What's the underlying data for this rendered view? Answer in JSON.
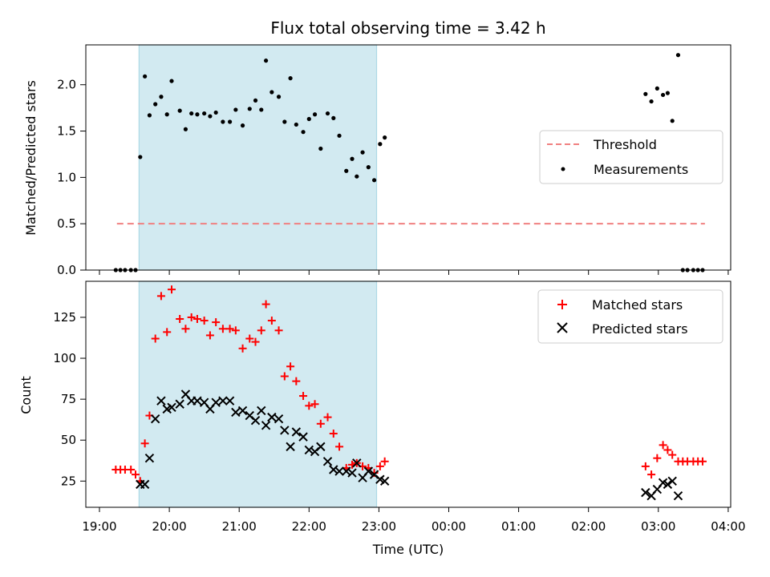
{
  "chart_data": {
    "title": "Flux total observing time = 3.42 h",
    "xlabel": "Time (UTC)",
    "x_tick_labels": [
      "19:00",
      "20:00",
      "21:00",
      "22:00",
      "23:00",
      "00:00",
      "01:00",
      "02:00",
      "03:00",
      "04:00"
    ],
    "colors": {
      "highlight": "#add8e6",
      "threshold": "#f08080",
      "matched": "#ff0000",
      "predicted": "#000000",
      "measurement": "#000000"
    },
    "highlight_span": {
      "start": "19:34",
      "end": "22:58"
    },
    "top": {
      "type": "scatter",
      "ylabel": "Matched/Predicted stars",
      "ylim": [
        0,
        2.43
      ],
      "yticks": [
        0.0,
        0.5,
        1.0,
        1.5,
        2.0
      ],
      "ytick_labels": [
        "0.0",
        "0.5",
        "1.0",
        "1.5",
        "2.0"
      ],
      "legend": {
        "placement": "center-right",
        "threshold_label": "Threshold",
        "measurements_label": "Measurements"
      },
      "threshold": {
        "value": 0.5,
        "from": "19:15",
        "to": "03:40"
      },
      "measurements": [
        [
          "19:14",
          0.0
        ],
        [
          "19:18",
          0.0
        ],
        [
          "19:22",
          0.0
        ],
        [
          "19:27",
          0.0
        ],
        [
          "19:31",
          0.0
        ],
        [
          "19:35",
          1.22
        ],
        [
          "19:39",
          2.09
        ],
        [
          "19:43",
          1.67
        ],
        [
          "19:48",
          1.79
        ],
        [
          "19:53",
          1.87
        ],
        [
          "19:58",
          1.68
        ],
        [
          "20:02",
          2.04
        ],
        [
          "20:09",
          1.72
        ],
        [
          "20:14",
          1.52
        ],
        [
          "20:19",
          1.69
        ],
        [
          "20:24",
          1.68
        ],
        [
          "20:30",
          1.69
        ],
        [
          "20:35",
          1.66
        ],
        [
          "20:40",
          1.7
        ],
        [
          "20:46",
          1.6
        ],
        [
          "20:52",
          1.6
        ],
        [
          "20:57",
          1.73
        ],
        [
          "21:03",
          1.56
        ],
        [
          "21:09",
          1.74
        ],
        [
          "21:14",
          1.83
        ],
        [
          "21:19",
          1.73
        ],
        [
          "21:23",
          2.26
        ],
        [
          "21:28",
          1.92
        ],
        [
          "21:34",
          1.87
        ],
        [
          "21:39",
          1.6
        ],
        [
          "21:44",
          2.07
        ],
        [
          "21:49",
          1.57
        ],
        [
          "21:55",
          1.49
        ],
        [
          "22:00",
          1.63
        ],
        [
          "22:05",
          1.68
        ],
        [
          "22:10",
          1.31
        ],
        [
          "22:16",
          1.69
        ],
        [
          "22:21",
          1.64
        ],
        [
          "22:26",
          1.45
        ],
        [
          "22:32",
          1.07
        ],
        [
          "22:37",
          1.2
        ],
        [
          "22:41",
          1.01
        ],
        [
          "22:46",
          1.27
        ],
        [
          "22:51",
          1.11
        ],
        [
          "22:56",
          0.97
        ],
        [
          "23:01",
          1.36
        ],
        [
          "23:05",
          1.43
        ],
        [
          "02:49",
          1.9
        ],
        [
          "02:54",
          1.82
        ],
        [
          "02:59",
          1.96
        ],
        [
          "03:04",
          1.89
        ],
        [
          "03:08",
          1.91
        ],
        [
          "03:12",
          1.61
        ],
        [
          "03:17",
          2.32
        ],
        [
          "03:21",
          0.0
        ],
        [
          "03:25",
          0.0
        ],
        [
          "03:30",
          0.0
        ],
        [
          "03:34",
          0.0
        ],
        [
          "03:38",
          0.0
        ]
      ]
    },
    "bottom": {
      "type": "scatter",
      "ylabel": "Count",
      "ylim": [
        9,
        147
      ],
      "yticks": [
        25,
        50,
        75,
        100,
        125
      ],
      "ytick_labels": [
        "25",
        "50",
        "75",
        "100",
        "125"
      ],
      "legend": {
        "placement": "upper-right",
        "matched_label": "Matched stars",
        "predicted_label": "Predicted stars"
      },
      "matched": [
        [
          "19:14",
          32
        ],
        [
          "19:18",
          32
        ],
        [
          "19:22",
          32
        ],
        [
          "19:27",
          32
        ],
        [
          "19:31",
          29
        ],
        [
          "19:35",
          25
        ],
        [
          "19:39",
          48
        ],
        [
          "19:43",
          65
        ],
        [
          "19:48",
          112
        ],
        [
          "19:53",
          138
        ],
        [
          "19:58",
          116
        ],
        [
          "20:02",
          142
        ],
        [
          "20:09",
          124
        ],
        [
          "20:14",
          118
        ],
        [
          "20:19",
          125
        ],
        [
          "20:24",
          124
        ],
        [
          "20:30",
          123
        ],
        [
          "20:35",
          114
        ],
        [
          "20:40",
          122
        ],
        [
          "20:46",
          118
        ],
        [
          "20:52",
          118
        ],
        [
          "20:57",
          117
        ],
        [
          "21:03",
          106
        ],
        [
          "21:09",
          112
        ],
        [
          "21:14",
          110
        ],
        [
          "21:19",
          117
        ],
        [
          "21:23",
          133
        ],
        [
          "21:28",
          123
        ],
        [
          "21:34",
          117
        ],
        [
          "21:39",
          89
        ],
        [
          "21:44",
          95
        ],
        [
          "21:49",
          86
        ],
        [
          "21:55",
          77
        ],
        [
          "22:00",
          71
        ],
        [
          "22:05",
          72
        ],
        [
          "22:10",
          60
        ],
        [
          "22:16",
          64
        ],
        [
          "22:21",
          54
        ],
        [
          "22:26",
          46
        ],
        [
          "22:32",
          33
        ],
        [
          "22:37",
          35
        ],
        [
          "22:41",
          36
        ],
        [
          "22:46",
          34
        ],
        [
          "22:51",
          33
        ],
        [
          "22:56",
          30
        ],
        [
          "23:01",
          34
        ],
        [
          "23:05",
          37
        ],
        [
          "02:49",
          34
        ],
        [
          "02:54",
          29
        ],
        [
          "02:59",
          39
        ],
        [
          "03:04",
          47
        ],
        [
          "03:08",
          44
        ],
        [
          "03:12",
          41
        ],
        [
          "03:17",
          37
        ],
        [
          "03:21",
          37
        ],
        [
          "03:25",
          37
        ],
        [
          "03:30",
          37
        ],
        [
          "03:34",
          37
        ],
        [
          "03:38",
          37
        ]
      ],
      "predicted": [
        [
          "19:35",
          23
        ],
        [
          "19:39",
          23
        ],
        [
          "19:43",
          39
        ],
        [
          "19:48",
          63
        ],
        [
          "19:53",
          74
        ],
        [
          "19:58",
          69
        ],
        [
          "20:02",
          70
        ],
        [
          "20:09",
          72
        ],
        [
          "20:14",
          78
        ],
        [
          "20:19",
          74
        ],
        [
          "20:24",
          74
        ],
        [
          "20:30",
          73
        ],
        [
          "20:35",
          69
        ],
        [
          "20:40",
          73
        ],
        [
          "20:46",
          74
        ],
        [
          "20:52",
          74
        ],
        [
          "20:57",
          67
        ],
        [
          "21:03",
          68
        ],
        [
          "21:09",
          65
        ],
        [
          "21:14",
          62
        ],
        [
          "21:19",
          68
        ],
        [
          "21:23",
          59
        ],
        [
          "21:28",
          64
        ],
        [
          "21:34",
          63
        ],
        [
          "21:39",
          56
        ],
        [
          "21:44",
          46
        ],
        [
          "21:49",
          55
        ],
        [
          "21:55",
          52
        ],
        [
          "22:00",
          44
        ],
        [
          "22:05",
          43
        ],
        [
          "22:10",
          46
        ],
        [
          "22:16",
          37
        ],
        [
          "22:21",
          32
        ],
        [
          "22:26",
          31
        ],
        [
          "22:32",
          31
        ],
        [
          "22:37",
          30
        ],
        [
          "22:41",
          36
        ],
        [
          "22:46",
          27
        ],
        [
          "22:51",
          31
        ],
        [
          "22:56",
          29
        ],
        [
          "23:01",
          26
        ],
        [
          "23:05",
          25
        ],
        [
          "02:49",
          18
        ],
        [
          "02:54",
          16
        ],
        [
          "02:59",
          20
        ],
        [
          "03:04",
          24
        ],
        [
          "03:08",
          23
        ],
        [
          "03:12",
          25
        ],
        [
          "03:17",
          16
        ]
      ]
    }
  }
}
